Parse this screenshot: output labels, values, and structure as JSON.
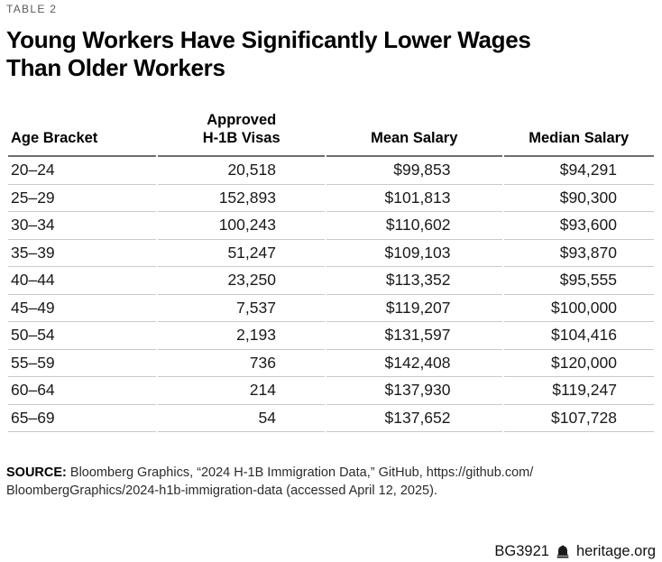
{
  "page": {
    "kicker": "TABLE 2",
    "title_lines": [
      "Young Workers Have Significantly Lower Wages",
      "Than Older Workers"
    ]
  },
  "chart_data": {
    "type": "table",
    "title": "Young Workers Have Significantly Lower Wages Than Older Workers",
    "columns": [
      "Age Bracket",
      "Approved\nH-1B Visas",
      "Mean Salary",
      "Median Salary"
    ],
    "rows": [
      [
        "20–24",
        "20,518",
        "$99,853",
        "$94,291"
      ],
      [
        "25–29",
        "152,893",
        "$101,813",
        "$90,300"
      ],
      [
        "30–34",
        "100,243",
        "$110,602",
        "$93,600"
      ],
      [
        "35–39",
        "51,247",
        "$109,103",
        "$93,870"
      ],
      [
        "40–44",
        "23,250",
        "$113,352",
        "$95,555"
      ],
      [
        "45–49",
        "7,537",
        "$119,207",
        "$100,000"
      ],
      [
        "50–54",
        "2,193",
        "$131,597",
        "$104,416"
      ],
      [
        "55–59",
        "736",
        "$142,408",
        "$120,000"
      ],
      [
        "60–64",
        "214",
        "$137,930",
        "$119,247"
      ],
      [
        "65–69",
        "54",
        "$137,652",
        "$107,728"
      ]
    ]
  },
  "source": {
    "label": "SOURCE:",
    "lines": [
      " Bloomberg Graphics, “2024 H-1B Immigration Data,” GitHub, https://github.com/",
      "BloombergGraphics/2024-h1b-immigration-data (accessed April 12, 2025)."
    ]
  },
  "footer": {
    "doc_id": "BG3921",
    "site": "heritage.org",
    "logo": "liberty-bell-icon"
  }
}
